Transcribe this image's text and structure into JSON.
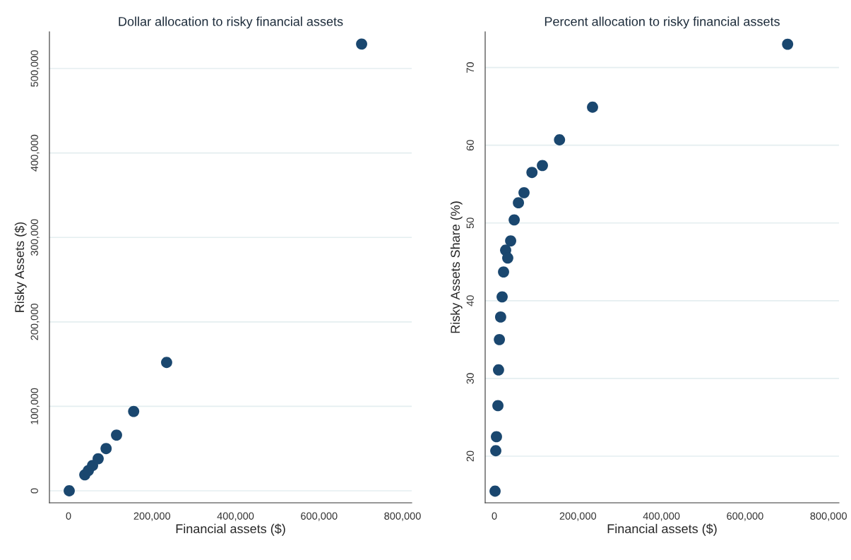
{
  "chart_data": [
    {
      "type": "scatter",
      "title": "Dollar allocation to risky financial assets",
      "xlabel": "Financial assets ($)",
      "ylabel": "Risky Assets ($)",
      "x": [
        1700,
        3400,
        5000,
        8500,
        10000,
        12000,
        15000,
        18600,
        22000,
        27000,
        32000,
        39000,
        47500,
        57600,
        71000,
        90000,
        115000,
        156000,
        235000,
        702000
      ],
      "series": [
        {
          "color": "#1a476f",
          "values": [
            0,
            null,
            null,
            null,
            null,
            null,
            null,
            null,
            null,
            null,
            null,
            19000,
            24000,
            30000,
            38000,
            50000,
            66000,
            94000,
            152000,
            529000
          ]
        }
      ],
      "xlim": [
        -45700,
        822000
      ],
      "xticks": [
        {
          "value": 0,
          "label": "0"
        },
        {
          "value": 200000,
          "label": "200,000"
        },
        {
          "value": 400000,
          "label": "400,000"
        },
        {
          "value": 600000,
          "label": "600,000"
        },
        {
          "value": 800000,
          "label": "800,000"
        }
      ],
      "ylim": [
        -14200,
        543500
      ],
      "yticks": [
        {
          "value": 0,
          "label": "0"
        },
        {
          "value": 100000,
          "label": "100,000"
        },
        {
          "value": 200000,
          "label": "200,000"
        },
        {
          "value": 300000,
          "label": "300,000"
        },
        {
          "value": 400000,
          "label": "400,000"
        },
        {
          "value": 500000,
          "label": "500,000"
        }
      ],
      "grid": "y",
      "marker": "circle"
    },
    {
      "type": "scatter",
      "title": "Percent allocation to risky financial assets",
      "xlabel": "Financial assets ($)",
      "ylabel": "Risky Assets Share (%)",
      "x": [
        1700,
        3400,
        5000,
        8500,
        10000,
        12000,
        15000,
        18600,
        22000,
        27000,
        32000,
        39000,
        47500,
        57600,
        71000,
        90000,
        115000,
        156000,
        235000,
        702000
      ],
      "series": [
        {
          "color": "#1a476f",
          "values": [
            15.5,
            20.7,
            22.5,
            26.5,
            31.1,
            35.0,
            37.9,
            40.5,
            43.7,
            46.5,
            45.5,
            47.7,
            50.4,
            52.6,
            53.9,
            56.5,
            57.4,
            60.7,
            64.9,
            73.0
          ]
        }
      ],
      "xlim": [
        -22000,
        825000
      ],
      "xticks": [
        {
          "value": 0,
          "label": "0"
        },
        {
          "value": 200000,
          "label": "200,000"
        },
        {
          "value": 400000,
          "label": "400,000"
        },
        {
          "value": 600000,
          "label": "600,000"
        },
        {
          "value": 800000,
          "label": "800,000"
        }
      ],
      "ylim": [
        14.0,
        74.6
      ],
      "yticks": [
        20,
        30,
        40,
        50,
        60,
        70
      ],
      "grid": "y",
      "marker": "circle"
    }
  ]
}
